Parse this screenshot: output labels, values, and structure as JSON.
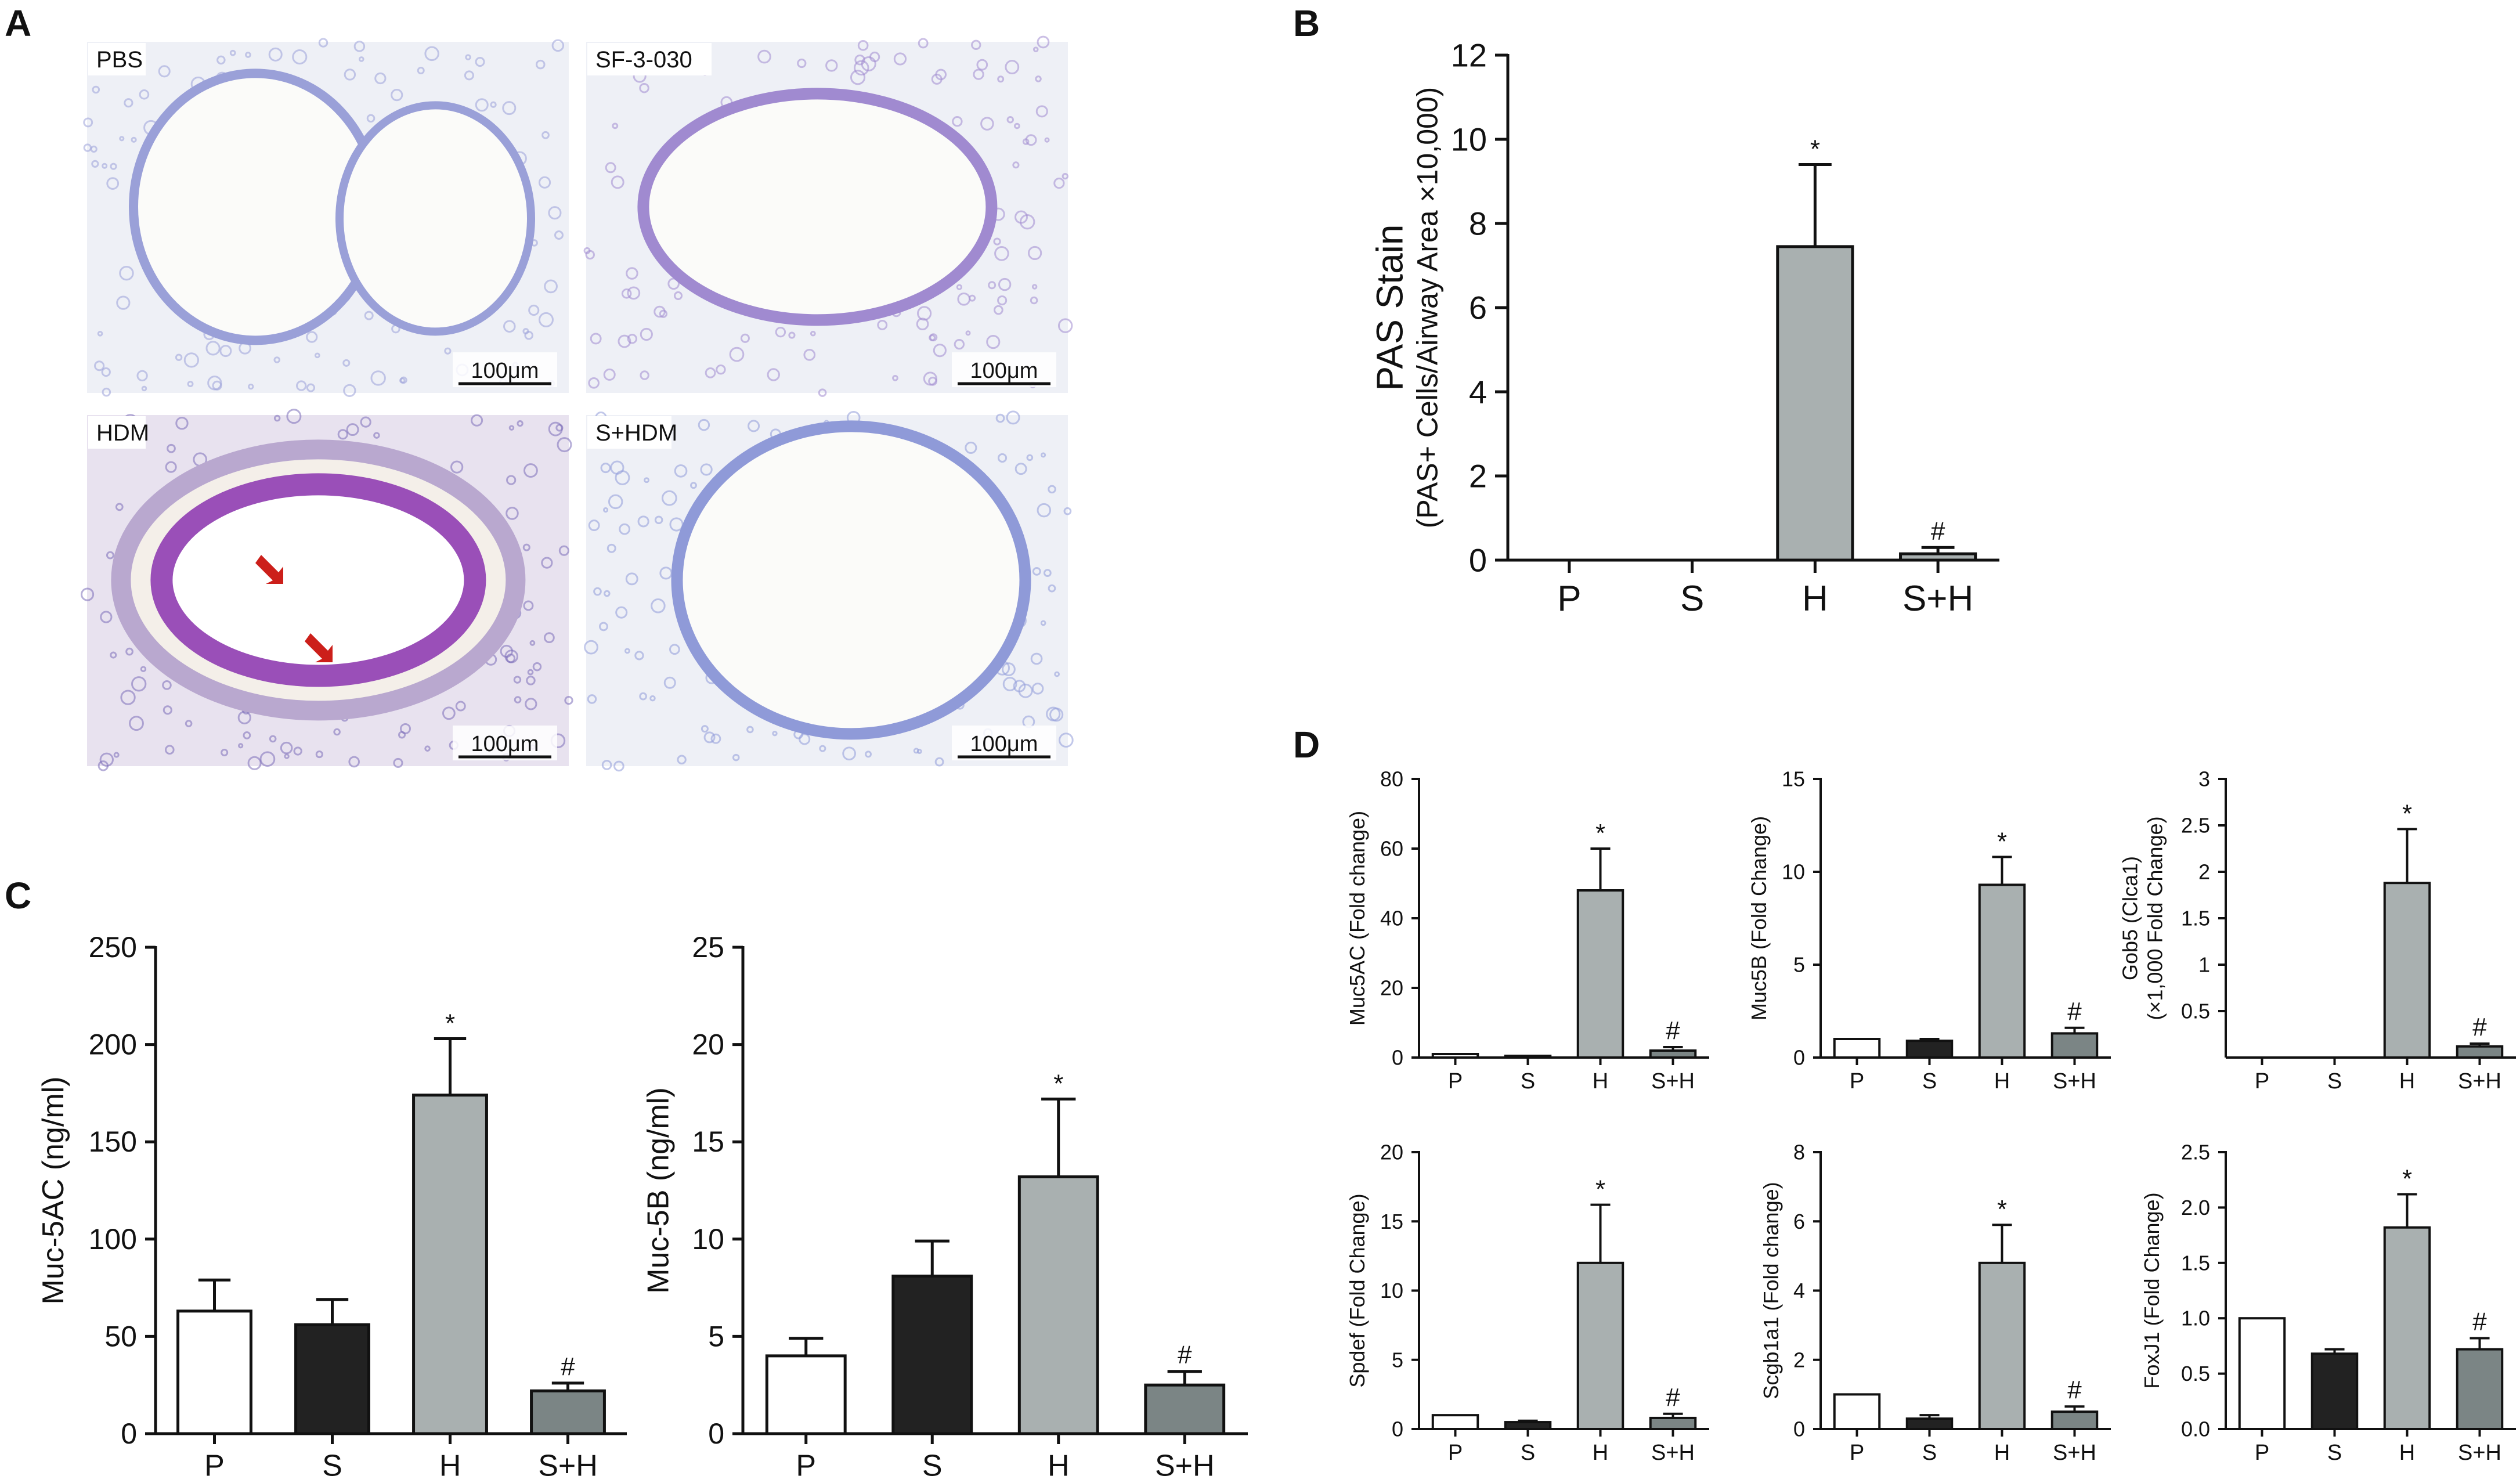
{
  "panel_labels": {
    "a": "A",
    "b": "B",
    "c": "C",
    "d": "D"
  },
  "micrographs": [
    {
      "label": "PBS",
      "scale_bar": "100μm",
      "bg": "#eef0f6",
      "stain": "#9aa0d8"
    },
    {
      "label": "SF-3-030",
      "scale_bar": "100μm",
      "bg": "#eef0f6",
      "stain": "#a08ad0"
    },
    {
      "label": "HDM",
      "scale_bar": "100μm",
      "bg": "#e8e2ef",
      "stain": "#7a6cb8"
    },
    {
      "label": "S+HDM",
      "scale_bar": "100μm",
      "bg": "#eef0f6",
      "stain": "#8f9ad8"
    }
  ],
  "colors": {
    "P": "#ffffff",
    "S": "#222222",
    "H": "#a9b0b0",
    "S+H": "#7b8585",
    "axis": "#111111"
  },
  "chart_data": [
    {
      "id": "B",
      "type": "bar",
      "size": "big",
      "title": "",
      "ylabel": "PAS Stain",
      "ylabel2": "(PAS+ Cells/Airway Area ×10,000)",
      "categories": [
        "P",
        "S",
        "H",
        "S+H"
      ],
      "values": [
        0,
        0,
        7.45,
        0.15
      ],
      "errors": [
        0,
        0,
        1.95,
        0.15
      ],
      "annotations": [
        "",
        "",
        "*",
        "#"
      ],
      "ylim": [
        0,
        12
      ],
      "ticks": [
        0,
        2,
        4,
        6,
        8,
        10,
        12
      ],
      "tick_labels": [
        "0",
        "2",
        "4",
        "6",
        "8",
        "10",
        "12"
      ],
      "bar_colors": [
        "#ffffff",
        "#222222",
        "#a9b0b0",
        "#a9b0b0"
      ]
    },
    {
      "id": "C1",
      "type": "bar",
      "size": "mid",
      "title": "",
      "ylabel": "Muc-5AC (ng/ml)",
      "ylabel2": "",
      "categories": [
        "P",
        "S",
        "H",
        "S+H"
      ],
      "values": [
        63,
        56,
        174,
        22
      ],
      "errors": [
        16,
        13,
        29,
        4
      ],
      "annotations": [
        "",
        "",
        "*",
        "#"
      ],
      "ylim": [
        0,
        250
      ],
      "ticks": [
        0,
        50,
        100,
        150,
        200,
        250
      ],
      "tick_labels": [
        "0",
        "50",
        "100",
        "150",
        "200",
        "250"
      ],
      "bar_colors": [
        "#ffffff",
        "#222222",
        "#a9b0b0",
        "#7b8585"
      ]
    },
    {
      "id": "C2",
      "type": "bar",
      "size": "mid",
      "title": "",
      "ylabel": "Muc-5B (ng/ml)",
      "ylabel2": "",
      "categories": [
        "P",
        "S",
        "H",
        "S+H"
      ],
      "values": [
        4.0,
        8.1,
        13.2,
        2.5
      ],
      "errors": [
        0.9,
        1.8,
        4.0,
        0.7
      ],
      "annotations": [
        "",
        "",
        "*",
        "#"
      ],
      "ylim": [
        0,
        25
      ],
      "ticks": [
        0,
        5,
        10,
        15,
        20,
        25
      ],
      "tick_labels": [
        "0",
        "5",
        "10",
        "15",
        "20",
        "25"
      ],
      "bar_colors": [
        "#ffffff",
        "#222222",
        "#a9b0b0",
        "#7b8585"
      ]
    },
    {
      "id": "D1",
      "type": "bar",
      "size": "sm",
      "title": "",
      "ylabel": "Muc5AC (Fold change)",
      "ylabel2": "",
      "categories": [
        "P",
        "S",
        "H",
        "S+H"
      ],
      "values": [
        1,
        0.5,
        48,
        2
      ],
      "errors": [
        0,
        0,
        12,
        1
      ],
      "annotations": [
        "",
        "",
        "*",
        "#"
      ],
      "ylim": [
        0,
        80
      ],
      "ticks": [
        0,
        20,
        40,
        60,
        80
      ],
      "tick_labels": [
        "0",
        "20",
        "40",
        "60",
        "80"
      ],
      "bar_colors": [
        "#ffffff",
        "#222222",
        "#a9b0b0",
        "#7b8585"
      ]
    },
    {
      "id": "D2",
      "type": "bar",
      "size": "sm",
      "title": "",
      "ylabel": "Muc5B (Fold Change)",
      "ylabel2": "",
      "categories": [
        "P",
        "S",
        "H",
        "S+H"
      ],
      "values": [
        1.0,
        0.9,
        9.3,
        1.3
      ],
      "errors": [
        0,
        0.1,
        1.5,
        0.3
      ],
      "annotations": [
        "",
        "",
        "*",
        "#"
      ],
      "ylim": [
        0,
        15
      ],
      "ticks": [
        0,
        5,
        10,
        15
      ],
      "tick_labels": [
        "0",
        "5",
        "10",
        "15"
      ],
      "bar_colors": [
        "#ffffff",
        "#222222",
        "#a9b0b0",
        "#7b8585"
      ]
    },
    {
      "id": "D3",
      "type": "bar",
      "size": "sm",
      "title": "",
      "ylabel": "Gob5 (Clca1)",
      "ylabel2": "(×1,000 Fold Change)",
      "categories": [
        "P",
        "S",
        "H",
        "S+H"
      ],
      "values": [
        0,
        0,
        1.88,
        0.12
      ],
      "errors": [
        0,
        0,
        0.58,
        0.03
      ],
      "annotations": [
        "",
        "",
        "*",
        "#"
      ],
      "ylim": [
        0,
        3
      ],
      "ticks": [
        0.5,
        1,
        1.5,
        2,
        2.5,
        3
      ],
      "tick_labels": [
        "0.5",
        "1",
        "1.5",
        "2",
        "2.5",
        "3"
      ],
      "bar_colors": [
        "#ffffff",
        "#222222",
        "#a9b0b0",
        "#7b8585"
      ]
    },
    {
      "id": "D4",
      "type": "bar",
      "size": "sm",
      "title": "",
      "ylabel": "Spdef (Fold Change)",
      "ylabel2": "",
      "categories": [
        "P",
        "S",
        "H",
        "S+H"
      ],
      "values": [
        1.0,
        0.5,
        12.0,
        0.8
      ],
      "errors": [
        0,
        0.1,
        4.2,
        0.3
      ],
      "annotations": [
        "",
        "",
        "*",
        "#"
      ],
      "ylim": [
        0,
        20
      ],
      "ticks": [
        0,
        5,
        10,
        15,
        20
      ],
      "tick_labels": [
        "0",
        "5",
        "10",
        "15",
        "20"
      ],
      "bar_colors": [
        "#ffffff",
        "#222222",
        "#a9b0b0",
        "#7b8585"
      ]
    },
    {
      "id": "D5",
      "type": "bar",
      "size": "sm",
      "title": "",
      "ylabel": "Scgb1a1 (Fold change)",
      "ylabel2": "",
      "categories": [
        "P",
        "S",
        "H",
        "S+H"
      ],
      "values": [
        1.0,
        0.3,
        4.8,
        0.5
      ],
      "errors": [
        0,
        0.1,
        1.1,
        0.15
      ],
      "annotations": [
        "",
        "",
        "*",
        "#"
      ],
      "ylim": [
        0,
        8
      ],
      "ticks": [
        0,
        2,
        4,
        6,
        8
      ],
      "tick_labels": [
        "0",
        "2",
        "4",
        "6",
        "8"
      ],
      "bar_colors": [
        "#ffffff",
        "#222222",
        "#a9b0b0",
        "#7b8585"
      ]
    },
    {
      "id": "D6",
      "type": "bar",
      "size": "sm",
      "title": "",
      "ylabel": "FoxJ1 (Fold Change)",
      "ylabel2": "",
      "categories": [
        "P",
        "S",
        "H",
        "S+H"
      ],
      "values": [
        1.0,
        0.68,
        1.82,
        0.72
      ],
      "errors": [
        0,
        0.04,
        0.3,
        0.1
      ],
      "annotations": [
        "",
        "",
        "*",
        "#"
      ],
      "ylim": [
        0,
        2.5
      ],
      "ticks": [
        0,
        0.5,
        1.0,
        1.5,
        2.0,
        2.5
      ],
      "tick_labels": [
        "0.0",
        "0.5",
        "1.0",
        "1.5",
        "2.0",
        "2.5"
      ],
      "bar_colors": [
        "#ffffff",
        "#222222",
        "#a9b0b0",
        "#7b8585"
      ]
    }
  ]
}
